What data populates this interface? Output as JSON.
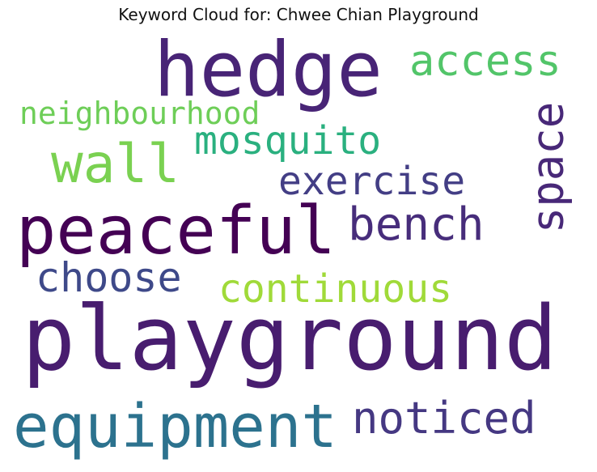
{
  "title": "Keyword Cloud for: Chwee Chian Playground",
  "words": [
    {
      "text": "hedge",
      "color": "#482476"
    },
    {
      "text": "access",
      "color": "#52c569"
    },
    {
      "text": "neighbourhood",
      "color": "#6ece58"
    },
    {
      "text": "mosquito",
      "color": "#2ab07f"
    },
    {
      "text": "wall",
      "color": "#7ad151"
    },
    {
      "text": "exercise",
      "color": "#433e85"
    },
    {
      "text": "space",
      "color": "#482878"
    },
    {
      "text": "peaceful",
      "color": "#440154"
    },
    {
      "text": "bench",
      "color": "#472d7b"
    },
    {
      "text": "choose",
      "color": "#3e4989"
    },
    {
      "text": "continuous",
      "color": "#a0da39"
    },
    {
      "text": "playground",
      "color": "#481d6f"
    },
    {
      "text": "equipment",
      "color": "#2c728e"
    },
    {
      "text": "noticed",
      "color": "#453882"
    }
  ]
}
